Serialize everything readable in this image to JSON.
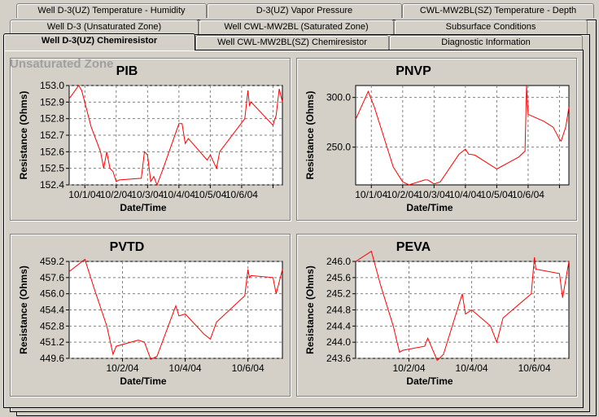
{
  "tabs": {
    "row3": [
      "Well D-3(UZ) Temperature - Humidity",
      "D-3(UZ) Vapor Pressure",
      "CWL-MW2BL(SZ) Temperature - Depth"
    ],
    "row2": [
      "Well D-3 (Unsaturated Zone)",
      "Well CWL-MW2BL (Saturated Zone)",
      "Subsurface Conditions"
    ],
    "row1": [
      "Well D-3(UZ) Chemiresistor",
      "Well CWL-MW2BL(SZ) Chemiresistor",
      "Diagnostic Information"
    ]
  },
  "zone_label": "Unsaturated Zone",
  "colors": {
    "line": "#ff0000",
    "plot_bg": "#ffffff",
    "grid": "#808080"
  },
  "chart_data": [
    {
      "type": "line",
      "title": "PIB",
      "xlabel": "Date/Time",
      "ylabel": "Resistance (Ohms)",
      "ylim": [
        152.4,
        153.0
      ],
      "yticks": [
        "153.0",
        "152.9",
        "152.8",
        "152.7",
        "152.6",
        "152.5",
        "152.4"
      ],
      "xlim": [
        0,
        6.8
      ],
      "xtick_positions": [
        0.5,
        1.5,
        2.5,
        3.5,
        4.5,
        5.5,
        6.5
      ],
      "xticks": [
        "10/1/04",
        "10/2/04",
        "10/3/04",
        "10/4/04",
        "10/5/04",
        "10/6/04",
        ""
      ],
      "grid": true,
      "series": [
        {
          "points": [
            [
              0.0,
              152.92
            ],
            [
              0.3,
              153.0
            ],
            [
              0.4,
              152.97
            ],
            [
              0.7,
              152.75
            ],
            [
              1.0,
              152.6
            ],
            [
              1.1,
              152.5
            ],
            [
              1.2,
              152.6
            ],
            [
              1.3,
              152.5
            ],
            [
              1.4,
              152.48
            ],
            [
              1.5,
              152.42
            ],
            [
              1.6,
              152.43
            ],
            [
              2.3,
              152.44
            ],
            [
              2.4,
              152.6
            ],
            [
              2.5,
              152.58
            ],
            [
              2.6,
              152.42
            ],
            [
              2.7,
              152.45
            ],
            [
              2.8,
              152.4
            ],
            [
              3.0,
              152.5
            ],
            [
              3.5,
              152.77
            ],
            [
              3.6,
              152.77
            ],
            [
              3.7,
              152.65
            ],
            [
              3.8,
              152.68
            ],
            [
              4.4,
              152.55
            ],
            [
              4.5,
              152.58
            ],
            [
              4.7,
              152.5
            ],
            [
              4.8,
              152.6
            ],
            [
              5.6,
              152.8
            ],
            [
              5.7,
              152.97
            ],
            [
              5.75,
              152.88
            ],
            [
              5.8,
              152.9
            ],
            [
              6.5,
              152.76
            ],
            [
              6.6,
              152.82
            ],
            [
              6.7,
              152.98
            ],
            [
              6.8,
              152.9
            ]
          ]
        }
      ]
    },
    {
      "type": "line",
      "title": "PNVP",
      "xlabel": "Date/Time",
      "ylabel": "Resistance (Ohms)",
      "ylim": [
        212.0,
        312.0
      ],
      "yticks": [
        "300.0",
        "250.0"
      ],
      "ytick_values": [
        300.0,
        250.0
      ],
      "xlim": [
        0,
        6.8
      ],
      "xtick_positions": [
        0.5,
        1.5,
        2.5,
        3.5,
        4.5,
        5.5,
        6.5
      ],
      "xticks": [
        "10/1/04",
        "10/2/04",
        "10/3/04",
        "10/4/04",
        "10/5/04",
        "10/6/04",
        ""
      ],
      "grid": true,
      "series": [
        {
          "points": [
            [
              0.0,
              278
            ],
            [
              0.4,
              306
            ],
            [
              0.6,
              290
            ],
            [
              1.0,
              250
            ],
            [
              1.2,
              230
            ],
            [
              1.5,
              215
            ],
            [
              1.7,
              212
            ],
            [
              2.2,
              217
            ],
            [
              2.3,
              217
            ],
            [
              2.5,
              213
            ],
            [
              2.7,
              215
            ],
            [
              3.3,
              243
            ],
            [
              3.5,
              248
            ],
            [
              3.6,
              243
            ],
            [
              3.8,
              242
            ],
            [
              4.5,
              228
            ],
            [
              5.2,
              240
            ],
            [
              5.4,
              246
            ],
            [
              5.45,
              312
            ],
            [
              5.5,
              283
            ],
            [
              6.0,
              276
            ],
            [
              6.3,
              270
            ],
            [
              6.5,
              258
            ],
            [
              6.55,
              256
            ],
            [
              6.7,
              270
            ],
            [
              6.8,
              290
            ]
          ]
        }
      ]
    },
    {
      "type": "line",
      "title": "PVTD",
      "xlabel": "Date/Time",
      "ylabel": "Resistance (Ohms)",
      "ylim": [
        449.6,
        459.2
      ],
      "yticks": [
        "459.2",
        "457.6",
        "456.0",
        "454.4",
        "452.8",
        "451.2",
        "449.6"
      ],
      "xlim": [
        0,
        6.8
      ],
      "xtick_positions": [
        1.7,
        3.7,
        5.7
      ],
      "xticks": [
        "10/2/04",
        "10/4/04",
        "10/6/04"
      ],
      "grid": true,
      "series": [
        {
          "points": [
            [
              0.0,
              458.2
            ],
            [
              0.5,
              459.4
            ],
            [
              0.8,
              456.5
            ],
            [
              1.2,
              452.8
            ],
            [
              1.4,
              450.0
            ],
            [
              1.5,
              450.8
            ],
            [
              2.2,
              451.4
            ],
            [
              2.4,
              451.2
            ],
            [
              2.6,
              449.5
            ],
            [
              2.8,
              449.8
            ],
            [
              3.4,
              454.8
            ],
            [
              3.5,
              453.8
            ],
            [
              3.7,
              454.0
            ],
            [
              4.3,
              452.0
            ],
            [
              4.5,
              451.5
            ],
            [
              4.7,
              453.2
            ],
            [
              5.6,
              455.8
            ],
            [
              5.7,
              458.4
            ],
            [
              5.75,
              457.6
            ],
            [
              5.8,
              457.8
            ],
            [
              6.5,
              457.6
            ],
            [
              6.6,
              456.0
            ],
            [
              6.8,
              458.4
            ]
          ]
        }
      ]
    },
    {
      "type": "line",
      "title": "PEVA",
      "xlabel": "Date/Time",
      "ylabel": "Resistance (Ohms)",
      "ylim": [
        243.6,
        246.0
      ],
      "yticks": [
        "246.0",
        "245.6",
        "245.2",
        "244.8",
        "244.4",
        "244.0",
        "243.6"
      ],
      "xlim": [
        0,
        6.8
      ],
      "xtick_positions": [
        1.7,
        3.7,
        5.7
      ],
      "xticks": [
        "10/2/04",
        "10/4/04",
        "10/6/04"
      ],
      "grid": true,
      "series": [
        {
          "points": [
            [
              0.0,
              246.0
            ],
            [
              0.5,
              246.25
            ],
            [
              0.8,
              245.4
            ],
            [
              1.2,
              244.4
            ],
            [
              1.4,
              243.75
            ],
            [
              1.5,
              243.8
            ],
            [
              2.2,
              243.9
            ],
            [
              2.3,
              244.1
            ],
            [
              2.6,
              243.55
            ],
            [
              2.8,
              243.7
            ],
            [
              3.4,
              245.2
            ],
            [
              3.5,
              244.7
            ],
            [
              3.7,
              244.8
            ],
            [
              4.3,
              244.4
            ],
            [
              4.5,
              244.0
            ],
            [
              4.7,
              244.6
            ],
            [
              5.6,
              245.2
            ],
            [
              5.7,
              246.1
            ],
            [
              5.75,
              245.8
            ],
            [
              5.8,
              245.8
            ],
            [
              6.5,
              245.7
            ],
            [
              6.6,
              245.1
            ],
            [
              6.8,
              246.0
            ]
          ]
        }
      ]
    }
  ]
}
